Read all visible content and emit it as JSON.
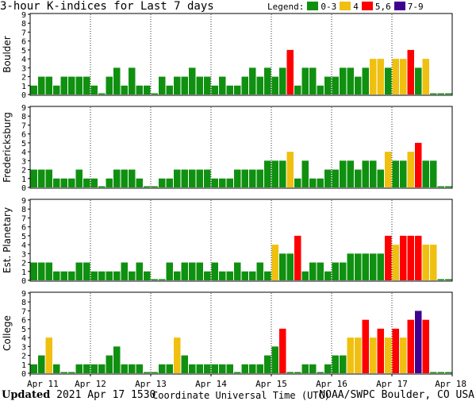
{
  "title": "3-hour K-indices for Last 7 days",
  "legend": {
    "label": "Legend:",
    "items": [
      {
        "label": "0-3",
        "color": "#109010"
      },
      {
        "label": "4",
        "color": "#f0c010"
      },
      {
        "label": "5,6",
        "color": "#ff0000"
      },
      {
        "label": "7-9",
        "color": "#400090"
      }
    ]
  },
  "footer": {
    "updated_label": "Updated",
    "updated_value": "2021 Apr 17 1530",
    "source": "NOAA/SWPC Boulder, CO USA"
  },
  "chart_data": {
    "type": "bar",
    "xlabel": "Coordinate Universal Time (UTC)",
    "x_ticks": [
      "Apr 11",
      "Apr 12",
      "Apr 13",
      "Apr 14",
      "Apr 15",
      "Apr 16",
      "Apr 17",
      "Apr 18"
    ],
    "ylim": [
      0,
      9
    ],
    "y_ticks": [
      0,
      1,
      2,
      3,
      4,
      5,
      6,
      7,
      8,
      9
    ],
    "bins_per_day": 8,
    "color_scale": {
      "0-3": "#109010",
      "4": "#f0c010",
      "5,6": "#ff0000",
      "7-9": "#400090"
    },
    "panels": [
      {
        "name": "Boulder",
        "values": [
          1,
          2,
          2,
          1,
          2,
          2,
          2,
          2,
          1,
          0,
          2,
          3,
          1,
          3,
          1,
          1,
          0,
          2,
          1,
          2,
          2,
          3,
          2,
          2,
          1,
          2,
          1,
          1,
          2,
          3,
          2,
          3,
          2,
          3,
          5,
          1,
          3,
          3,
          1,
          2,
          2,
          3,
          3,
          2,
          3,
          4,
          4,
          3,
          4,
          4,
          5,
          3,
          4,
          0,
          0,
          0
        ]
      },
      {
        "name": "Fredericksburg",
        "values": [
          2,
          2,
          2,
          1,
          1,
          1,
          2,
          1,
          1,
          0,
          1,
          2,
          2,
          2,
          1,
          0,
          0,
          1,
          1,
          2,
          2,
          2,
          2,
          2,
          1,
          1,
          1,
          2,
          2,
          2,
          2,
          3,
          3,
          3,
          4,
          1,
          3,
          1,
          1,
          2,
          2,
          3,
          3,
          2,
          3,
          3,
          2,
          4,
          3,
          3,
          4,
          5,
          3,
          3,
          0,
          0
        ]
      },
      {
        "name": "Est. Planetary",
        "values": [
          2,
          2,
          2,
          1,
          1,
          1,
          2,
          2,
          1,
          1,
          1,
          1,
          2,
          1,
          2,
          1,
          0,
          0,
          2,
          1,
          2,
          2,
          2,
          1,
          2,
          1,
          1,
          2,
          1,
          1,
          2,
          1,
          4,
          3,
          3,
          5,
          1,
          2,
          2,
          1,
          2,
          2,
          3,
          3,
          3,
          3,
          3,
          5,
          4,
          5,
          5,
          5,
          4,
          4,
          0,
          0
        ]
      },
      {
        "name": "College",
        "values": [
          1,
          2,
          4,
          1,
          0,
          0,
          1,
          1,
          1,
          1,
          2,
          3,
          1,
          1,
          1,
          0,
          0,
          1,
          1,
          4,
          2,
          1,
          1,
          1,
          1,
          1,
          1,
          0,
          1,
          1,
          1,
          2,
          3,
          5,
          0,
          0,
          1,
          1,
          0,
          1,
          2,
          2,
          4,
          4,
          6,
          4,
          5,
          4,
          5,
          4,
          6,
          7,
          6,
          0,
          0,
          0
        ]
      }
    ]
  }
}
